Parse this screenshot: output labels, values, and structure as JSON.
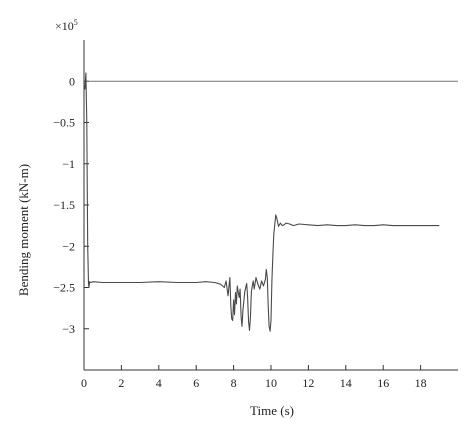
{
  "chart_data": {
    "type": "line",
    "title": "",
    "xlabel": "Time (s)",
    "ylabel": "Bending moment (kN-m)",
    "y_multiplier_label": "×10",
    "y_multiplier_exponent": "5",
    "xlim": [
      0,
      20
    ],
    "ylim": [
      -3.5,
      0.5
    ],
    "x_ticks": [
      0,
      2,
      4,
      6,
      8,
      10,
      12,
      14,
      16,
      18
    ],
    "x_tick_labels": [
      "0",
      "2",
      "4",
      "6",
      "8",
      "10",
      "12",
      "14",
      "16",
      "18"
    ],
    "y_ticks": [
      0,
      -0.5,
      -1,
      -1.5,
      -2,
      -2.5,
      -3
    ],
    "y_tick_labels": [
      "0",
      "−0.5",
      "−1",
      "−1.5",
      "−2",
      "−2.5",
      "−3"
    ],
    "grid": false,
    "reference_line_y": 0,
    "series": [
      {
        "x": [
          0.05,
          0.1,
          0.12,
          0.15,
          0.17,
          0.2,
          0.24,
          0.27,
          0.3,
          0.35,
          0.5,
          1,
          2,
          3,
          4,
          5,
          6,
          6.5,
          7,
          7.3,
          7.5,
          7.6,
          7.7,
          7.8,
          7.85,
          7.9,
          7.95,
          8.0,
          8.05,
          8.1,
          8.15,
          8.2,
          8.25,
          8.3,
          8.35,
          8.4,
          8.45,
          8.5,
          8.6,
          8.7,
          8.75,
          8.8,
          8.85,
          8.9,
          8.95,
          9.0,
          9.05,
          9.1,
          9.2,
          9.3,
          9.4,
          9.5,
          9.6,
          9.7,
          9.75,
          9.8,
          9.85,
          9.9,
          9.95,
          10.0,
          10.05,
          10.1,
          10.15,
          10.2,
          10.25,
          10.3,
          10.35,
          10.4,
          10.5,
          10.6,
          10.7,
          10.8,
          11,
          11.2,
          11.5,
          12,
          12.5,
          13,
          13.5,
          14,
          14.5,
          15,
          15.5,
          16,
          16.5,
          17,
          17.5,
          18,
          18.5,
          19
        ],
        "y": [
          -0.1,
          0.1,
          -0.1,
          -0.5,
          -1.2,
          -2.0,
          -2.45,
          -2.5,
          -2.43,
          -2.44,
          -2.43,
          -2.44,
          -2.44,
          -2.44,
          -2.43,
          -2.44,
          -2.44,
          -2.43,
          -2.44,
          -2.46,
          -2.5,
          -2.42,
          -2.6,
          -2.38,
          -2.72,
          -2.88,
          -2.9,
          -2.65,
          -2.83,
          -2.56,
          -2.7,
          -2.48,
          -2.56,
          -2.62,
          -2.52,
          -2.85,
          -2.97,
          -2.78,
          -2.55,
          -2.45,
          -2.62,
          -2.92,
          -3.02,
          -2.87,
          -2.55,
          -2.48,
          -2.42,
          -2.52,
          -2.38,
          -2.46,
          -2.52,
          -2.42,
          -2.48,
          -2.4,
          -2.28,
          -2.38,
          -2.72,
          -2.97,
          -3.03,
          -2.9,
          -2.42,
          -2.1,
          -1.85,
          -1.75,
          -1.62,
          -1.65,
          -1.7,
          -1.76,
          -1.72,
          -1.75,
          -1.74,
          -1.72,
          -1.73,
          -1.75,
          -1.73,
          -1.74,
          -1.75,
          -1.74,
          -1.75,
          -1.75,
          -1.74,
          -1.75,
          -1.75,
          -1.74,
          -1.75,
          -1.75,
          -1.75,
          -1.75,
          -1.75,
          -1.75
        ]
      }
    ]
  },
  "colors": {
    "series": "#4a4a4a",
    "axis": "#333333",
    "reference_line": "#777777"
  }
}
